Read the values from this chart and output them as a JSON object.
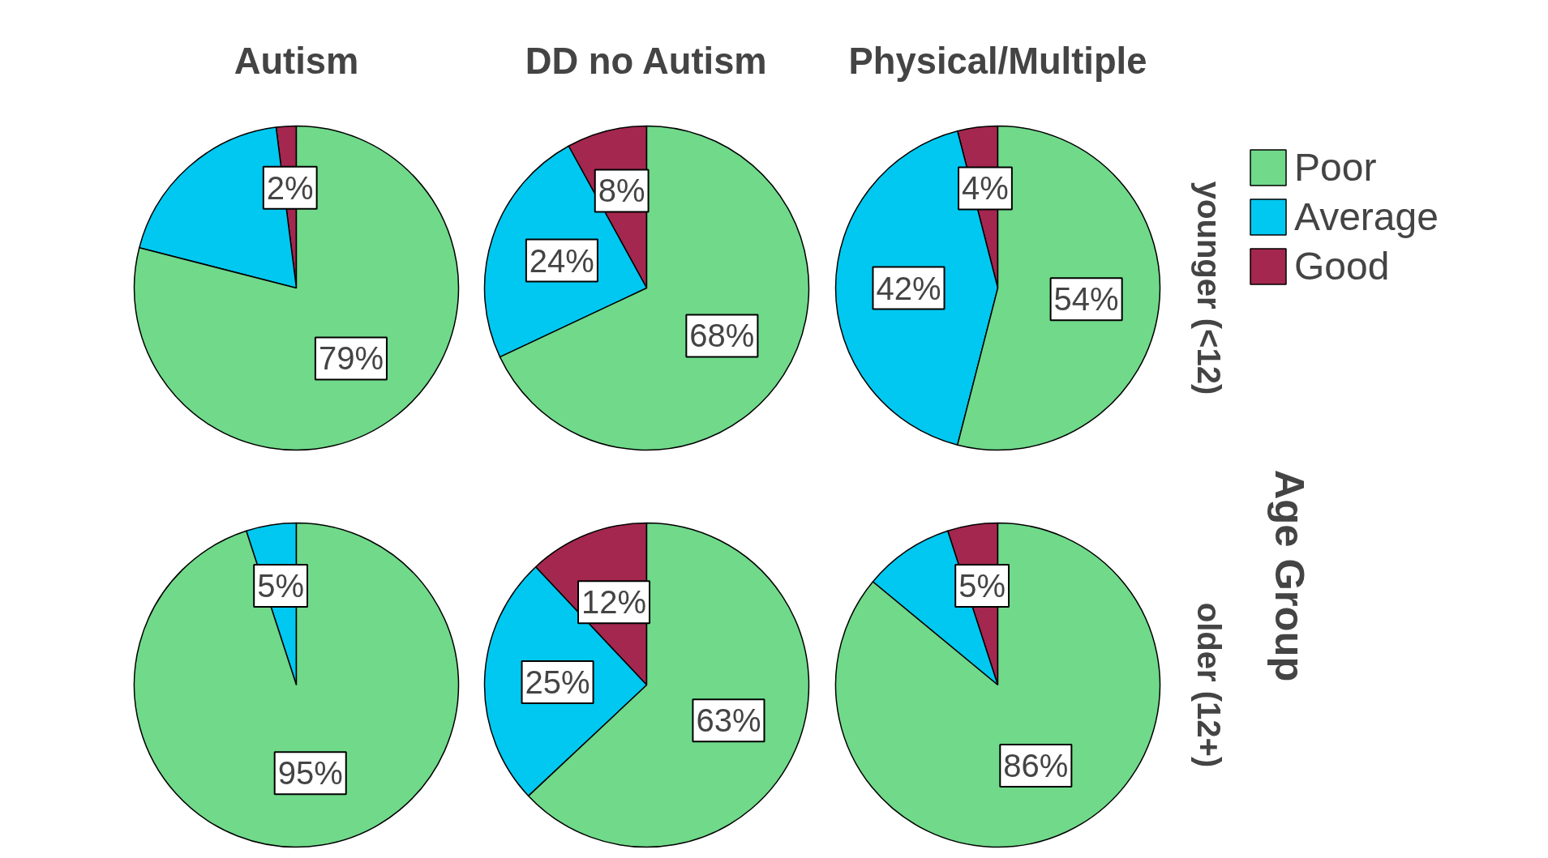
{
  "chart_data": [
    {
      "type": "pie",
      "title": "Autism",
      "categories": [
        null,
        null,
        null
      ],
      "values": [
        79,
        19,
        2
      ],
      "value_labels": [
        "79%",
        null,
        "2%"
      ],
      "colors": [
        "#70d98a",
        "#00c8f0",
        "#a3274f"
      ]
    },
    {
      "type": "pie",
      "title": "DD no Autism",
      "categories": [
        null,
        null,
        null
      ],
      "values": [
        68,
        24,
        8
      ],
      "value_labels": [
        "68%",
        "24%",
        "8%"
      ],
      "colors": [
        "#70d98a",
        "#00c8f0",
        "#a3274f"
      ]
    },
    {
      "type": "pie",
      "title": "Physical/Multiple",
      "y2label": "younger (<12)",
      "legend": "right",
      "categories": [
        "Poor",
        "Average",
        "Good"
      ],
      "values": [
        54,
        42,
        4
      ],
      "value_labels": [
        "54%",
        "42%",
        "4%"
      ],
      "colors": [
        "#70d98a",
        "#00c8f0",
        "#a3274f"
      ]
    },
    {
      "type": "pie",
      "categories": [
        null,
        null
      ],
      "values": [
        95,
        5
      ],
      "value_labels": [
        "95%",
        "5%"
      ],
      "colors": [
        "#70d98a",
        "#00c8f0"
      ]
    },
    {
      "type": "pie",
      "categories": [
        null,
        null,
        null
      ],
      "values": [
        63,
        25,
        12
      ],
      "value_labels": [
        "63%",
        "25%",
        "12%"
      ],
      "colors": [
        "#70d98a",
        "#00c8f0",
        "#a3274f"
      ]
    },
    {
      "type": "pie",
      "y2label": "older (12+)",
      "annotations": [
        "Age Group"
      ],
      "categories": [
        null,
        null,
        null
      ],
      "values": [
        86,
        9,
        5
      ],
      "value_labels": [
        "86%",
        null,
        "5%"
      ],
      "colors": [
        "#70d98a",
        "#00c8f0",
        "#a3274f"
      ]
    }
  ]
}
